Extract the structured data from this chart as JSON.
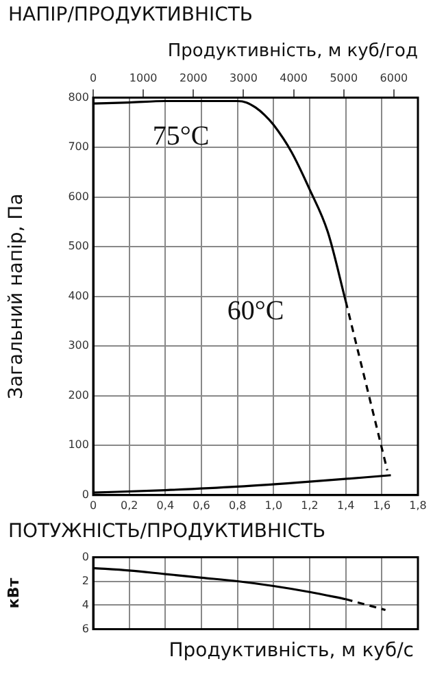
{
  "chart_data": [
    {
      "type": "line",
      "title": "НАПІР/ПРОДУКТИВНІСТЬ",
      "x2label": "Продуктивність, м куб/год",
      "ylabel": "Загальний напір, Па",
      "xlim": [
        0,
        1.8
      ],
      "xticks": [
        0,
        {
          "value": 0.2,
          "label": "0,2"
        },
        {
          "value": 0.4,
          "label": "0,4"
        },
        {
          "value": 0.6,
          "label": "0,6"
        },
        {
          "value": 0.8,
          "label": "0,8"
        },
        {
          "value": 1.0,
          "label": "1,0"
        },
        {
          "value": 1.2,
          "label": "1,2"
        },
        {
          "value": 1.4,
          "label": "1,4"
        },
        {
          "value": 1.6,
          "label": "1,6"
        },
        {
          "value": 1.8,
          "label": "1,8"
        }
      ],
      "x2lim": [
        0,
        6480
      ],
      "x2ticks": [
        0,
        1000,
        2000,
        3000,
        4000,
        5000,
        6000
      ],
      "ylim": [
        0,
        800
      ],
      "yticks": [
        0,
        100,
        200,
        300,
        400,
        500,
        600,
        700,
        800
      ],
      "grid": true,
      "legend": false,
      "series": [
        {
          "color": "#000000",
          "x": [
            0,
            0.2,
            0.4,
            0.6,
            0.8,
            0.85,
            0.9,
            0.95,
            1.0,
            1.1,
            1.2,
            1.3,
            1.4
          ],
          "values": [
            788,
            790,
            793,
            793,
            793,
            790,
            780,
            765,
            745,
            690,
            615,
            530,
            390
          ]
        },
        {
          "color": "#000000",
          "line_style": "dashed",
          "x": [
            1.4,
            1.63
          ],
          "values": [
            390,
            50
          ]
        },
        {
          "color": "#000000",
          "x": [
            0,
            0.4,
            0.8,
            1.2,
            1.65
          ],
          "values": [
            5,
            10,
            17,
            27,
            40
          ]
        }
      ],
      "annotations": [
        "75°C",
        "60°C"
      ]
    },
    {
      "type": "line",
      "title": "ПОТУЖНІСТЬ/ПРОДУКТИВНІСТЬ",
      "xlabel": "Продуктивність, м куб/с",
      "ylabel": "кВт",
      "xlim": [
        0,
        1.8
      ],
      "ylim": [
        6,
        0
      ],
      "yticks": [
        0,
        2,
        4,
        6
      ],
      "tick_labels": "y",
      "grid": true,
      "legend": false,
      "series": [
        {
          "color": "#000000",
          "x": [
            0,
            0.2,
            0.4,
            0.6,
            0.8,
            1.0,
            1.2,
            1.4
          ],
          "values": [
            0.9,
            1.1,
            1.4,
            1.7,
            2.0,
            2.4,
            2.9,
            3.5
          ]
        },
        {
          "color": "#000000",
          "line_style": "dashed",
          "x": [
            1.4,
            1.62
          ],
          "values": [
            3.5,
            4.4
          ]
        }
      ]
    }
  ]
}
